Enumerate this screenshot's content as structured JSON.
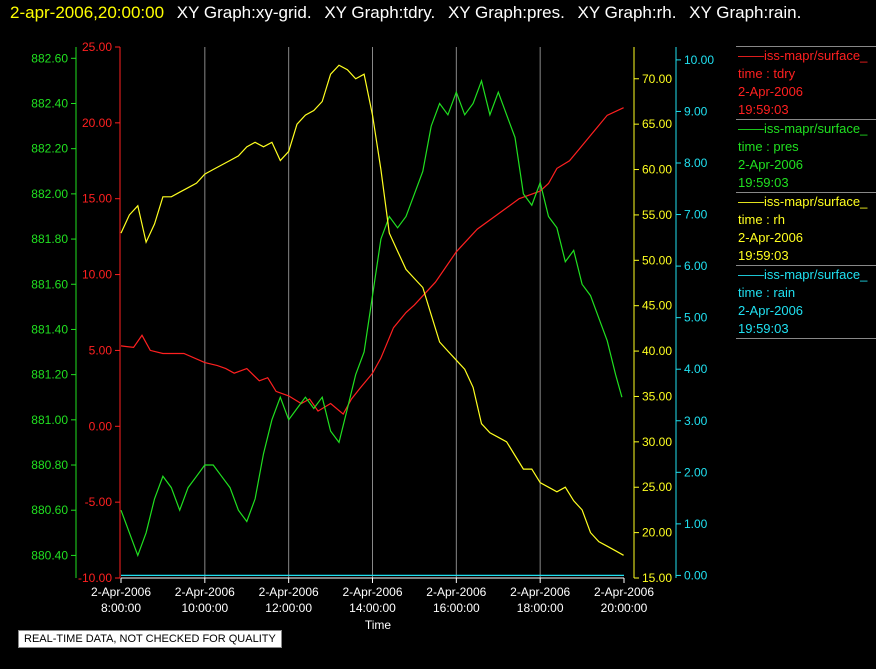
{
  "header": {
    "timestamp": "2-apr-2006,20:00:00",
    "graph_titles": [
      "XY Graph:xy-grid.",
      "XY Graph:tdry.",
      "XY Graph:pres.",
      "XY Graph:rh.",
      "XY Graph:rain."
    ]
  },
  "legend": [
    {
      "name": "iss-mapr/surface_",
      "var": "time : tdry",
      "date": "2-Apr-2006",
      "time": "19:59:03",
      "color": "#ff2020"
    },
    {
      "name": "iss-mapr/surface_",
      "var": "time : pres",
      "date": "2-Apr-2006",
      "time": "19:59:03",
      "color": "#20e020"
    },
    {
      "name": "iss-mapr/surface_",
      "var": "time : rh",
      "date": "2-Apr-2006",
      "time": "19:59:03",
      "color": "#ffff20"
    },
    {
      "name": "iss-mapr/surface_",
      "var": "time : rain",
      "date": "2-Apr-2006",
      "time": "19:59:03",
      "color": "#20e0f0"
    }
  ],
  "footer_note": "REAL-TIME DATA, NOT CHECKED FOR QUALITY",
  "chart_data": {
    "type": "line",
    "xlabel": "Time",
    "x_ticks": [
      {
        "date": "2-Apr-2006",
        "time": "8:00:00"
      },
      {
        "date": "2-Apr-2006",
        "time": "10:00:00"
      },
      {
        "date": "2-Apr-2006",
        "time": "12:00:00"
      },
      {
        "date": "2-Apr-2006",
        "time": "14:00:00"
      },
      {
        "date": "2-Apr-2006",
        "time": "16:00:00"
      },
      {
        "date": "2-Apr-2006",
        "time": "18:00:00"
      },
      {
        "date": "2-Apr-2006",
        "time": "20:00:00"
      }
    ],
    "xlim": [
      8,
      20
    ],
    "grid": "vertical",
    "axes": {
      "pres": {
        "color": "#20e020",
        "ylim": [
          880.3,
          882.65
        ],
        "ticks": [
          "882.60",
          "882.40",
          "882.20",
          "882.00",
          "881.80",
          "881.60",
          "881.40",
          "881.20",
          "881.00",
          "880.80",
          "880.60",
          "880.40"
        ]
      },
      "tdry": {
        "color": "#ff2020",
        "ylim": [
          -10,
          25
        ],
        "ticks": [
          "25.00",
          "20.00",
          "15.00",
          "10.00",
          "5.00",
          "0.00",
          "-5.00",
          "-10.00"
        ]
      },
      "rh": {
        "color": "#ffff20",
        "ylim": [
          15,
          73.5
        ],
        "ticks": [
          "70.00",
          "65.00",
          "60.00",
          "55.00",
          "50.00",
          "45.00",
          "40.00",
          "35.00",
          "30.00",
          "25.00",
          "20.00",
          "15.00"
        ]
      },
      "rain": {
        "color": "#20e0f0",
        "ylim": [
          -0.05,
          10.25
        ],
        "ticks": [
          "10.00",
          "9.00",
          "8.00",
          "7.00",
          "6.00",
          "5.00",
          "4.00",
          "3.00",
          "2.00",
          "1.00",
          "0.00"
        ]
      }
    },
    "series": [
      {
        "axis": "tdry",
        "x": [
          8,
          8.3,
          8.5,
          8.7,
          9,
          9.5,
          10,
          10.3,
          10.5,
          10.7,
          11,
          11.3,
          11.5,
          11.7,
          12,
          12.3,
          12.5,
          12.7,
          13,
          13.3,
          13.5,
          13.7,
          14,
          14.2,
          14.5,
          14.8,
          15,
          15.5,
          16,
          16.5,
          17,
          17.5,
          18,
          18.2,
          18.4,
          18.7,
          19,
          19.3,
          19.6,
          19.99
        ],
        "y": [
          5.3,
          5.2,
          6.0,
          5,
          4.8,
          4.8,
          4.2,
          4.0,
          3.8,
          3.5,
          3.8,
          3.0,
          3.2,
          2.3,
          2.0,
          1.5,
          1.8,
          1.0,
          1.5,
          0.8,
          1.8,
          2.5,
          3.5,
          4.5,
          6.5,
          7.5,
          8,
          9.5,
          11.5,
          13,
          14,
          15,
          15.5,
          16,
          17,
          17.5,
          18.5,
          19.5,
          20.5,
          21
        ]
      },
      {
        "axis": "pres",
        "x": [
          8,
          8.2,
          8.4,
          8.6,
          8.8,
          9,
          9.2,
          9.4,
          9.6,
          9.8,
          10,
          10.2,
          10.4,
          10.6,
          10.8,
          11,
          11.2,
          11.4,
          11.6,
          11.8,
          12,
          12.2,
          12.4,
          12.6,
          12.8,
          13,
          13.2,
          13.4,
          13.6,
          13.8,
          14,
          14.2,
          14.4,
          14.6,
          14.8,
          15,
          15.2,
          15.4,
          15.6,
          15.8,
          16,
          16.2,
          16.4,
          16.6,
          16.8,
          17,
          17.2,
          17.4,
          17.6,
          17.8,
          18,
          18.2,
          18.4,
          18.6,
          18.8,
          19,
          19.2,
          19.4,
          19.6,
          19.8,
          19.95
        ],
        "y": [
          880.6,
          880.5,
          880.4,
          880.5,
          880.65,
          880.75,
          880.7,
          880.6,
          880.7,
          880.75,
          880.8,
          880.8,
          880.75,
          880.7,
          880.6,
          880.55,
          880.65,
          880.85,
          881.0,
          881.1,
          881.0,
          881.05,
          881.1,
          881.05,
          881.1,
          880.95,
          880.9,
          881.05,
          881.2,
          881.3,
          881.55,
          881.8,
          881.9,
          881.85,
          881.9,
          882.0,
          882.1,
          882.3,
          882.4,
          882.35,
          882.45,
          882.35,
          882.4,
          882.5,
          882.35,
          882.45,
          882.35,
          882.25,
          882.0,
          881.95,
          882.05,
          881.9,
          881.85,
          881.7,
          881.75,
          881.6,
          881.55,
          881.45,
          881.35,
          881.2,
          881.1
        ]
      },
      {
        "axis": "rh",
        "x": [
          8,
          8.2,
          8.4,
          8.6,
          8.8,
          9,
          9.2,
          9.4,
          9.6,
          9.8,
          10,
          10.2,
          10.4,
          10.6,
          10.8,
          11,
          11.2,
          11.4,
          11.6,
          11.8,
          12,
          12.2,
          12.4,
          12.6,
          12.8,
          13,
          13.2,
          13.4,
          13.6,
          13.8,
          14,
          14.2,
          14.4,
          14.6,
          14.8,
          15,
          15.2,
          15.4,
          15.6,
          15.8,
          16,
          16.2,
          16.4,
          16.6,
          16.8,
          17,
          17.2,
          17.4,
          17.6,
          17.8,
          18,
          18.2,
          18.4,
          18.6,
          18.8,
          19,
          19.2,
          19.4,
          19.6,
          19.8,
          19.99
        ],
        "y": [
          53,
          55,
          56,
          52,
          54,
          57,
          57,
          57.5,
          58,
          58.5,
          59.5,
          60,
          60.5,
          61,
          61.5,
          62.5,
          63,
          62.5,
          63,
          61,
          62,
          65,
          66,
          66.5,
          67.5,
          70.5,
          71.5,
          71,
          70,
          70.5,
          66,
          60,
          53,
          51,
          49,
          48,
          47,
          44,
          41,
          40,
          39,
          38,
          36,
          32,
          31,
          30.5,
          30,
          28.5,
          27,
          27,
          25.5,
          25,
          24.5,
          25,
          23.5,
          22.5,
          20,
          19,
          18.5,
          18,
          17.5
        ]
      },
      {
        "axis": "rain",
        "x": [
          8,
          20
        ],
        "y": [
          0,
          0
        ]
      }
    ]
  }
}
